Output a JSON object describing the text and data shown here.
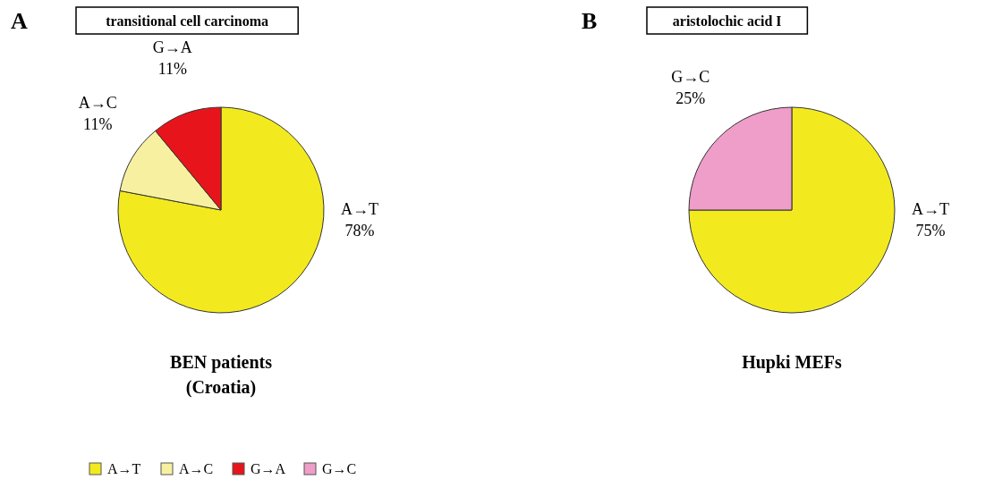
{
  "chart_data": [
    {
      "type": "pie",
      "title": "transitional cell carcinoma",
      "xlabel": "BEN patients (Croatia)",
      "annotations": [
        "A"
      ],
      "categories": [
        "A→T",
        "A→C",
        "G→A"
      ],
      "values": [
        78,
        11,
        11
      ],
      "value_labels": [
        "78%",
        "11%",
        "11%"
      ],
      "colors": [
        "#f2ea1e",
        "#f7f0a0",
        "#e8141c"
      ],
      "legend": "bottom"
    },
    {
      "type": "pie",
      "title": "aristolochic acid I",
      "xlabel": "Hupki MEFs",
      "annotations": [
        "B"
      ],
      "categories": [
        "A→T",
        "G→C"
      ],
      "values": [
        75,
        25
      ],
      "value_labels": [
        "75%",
        "25%"
      ],
      "colors": [
        "#f2ea1e",
        "#ee9ec8"
      ]
    }
  ]
}
